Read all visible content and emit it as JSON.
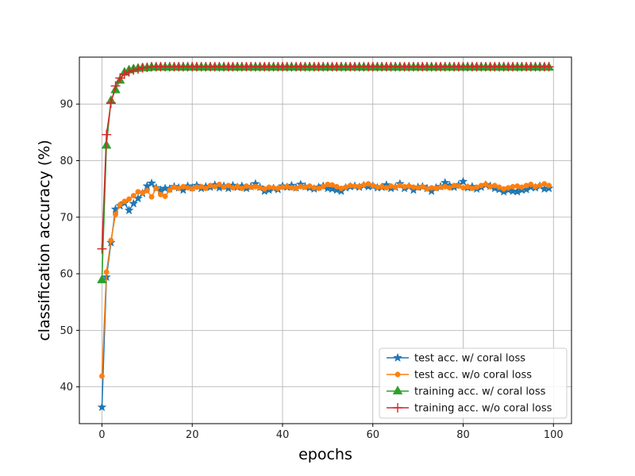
{
  "chart_data": {
    "type": "line",
    "title": "",
    "xlabel": "epochs",
    "ylabel": "classification accuracy (%)",
    "xlim": [
      -5,
      104
    ],
    "ylim": [
      33.5,
      98.3
    ],
    "xticks": [
      0,
      20,
      40,
      60,
      80,
      100
    ],
    "yticks": [
      40,
      50,
      60,
      70,
      80,
      90
    ],
    "grid": true,
    "legend_position": "lower-right",
    "series": [
      {
        "name": "test acc. w/ coral loss",
        "color": "#1f77b4",
        "marker": "star",
        "x": [
          0,
          1,
          2,
          3,
          4,
          5,
          6,
          7,
          8,
          9,
          10,
          11,
          12,
          13,
          14,
          15,
          16,
          17,
          18,
          19,
          20,
          21,
          22,
          23,
          24,
          25,
          26,
          27,
          28,
          29,
          30,
          31,
          32,
          33,
          34,
          35,
          36,
          37,
          38,
          39,
          40,
          41,
          42,
          43,
          44,
          45,
          46,
          47,
          48,
          49,
          50,
          51,
          52,
          53,
          54,
          55,
          56,
          57,
          58,
          59,
          60,
          61,
          62,
          63,
          64,
          65,
          66,
          67,
          68,
          69,
          70,
          71,
          72,
          73,
          74,
          75,
          76,
          77,
          78,
          79,
          80,
          81,
          82,
          83,
          84,
          85,
          86,
          87,
          88,
          89,
          90,
          91,
          92,
          93,
          94,
          95,
          96,
          97,
          98,
          99
        ],
        "y": [
          36.4,
          59.4,
          65.5,
          71.4,
          72.0,
          72.5,
          71.2,
          72.4,
          73.3,
          74.2,
          75.5,
          76.0,
          75.2,
          74.8,
          75.1,
          75.0,
          75.4,
          75.2,
          74.8,
          75.5,
          75.2,
          75.6,
          75.1,
          75.4,
          75.3,
          75.7,
          75.2,
          75.5,
          75.1,
          75.6,
          75.3,
          75.5,
          75.1,
          75.4,
          75.9,
          75.3,
          74.6,
          74.8,
          75.1,
          74.9,
          75.5,
          75.3,
          75.6,
          75.2,
          75.8,
          75.4,
          75.2,
          75.0,
          75.3,
          75.5,
          75.1,
          75.0,
          74.8,
          74.6,
          75.2,
          75.4,
          75.5,
          75.3,
          75.6,
          75.4,
          75.5,
          75.2,
          75.3,
          75.7,
          75.1,
          75.3,
          75.9,
          75.1,
          75.4,
          74.8,
          75.3,
          75.4,
          75.1,
          74.6,
          75.2,
          75.4,
          76.1,
          75.6,
          75.3,
          75.7,
          76.3,
          75.2,
          75.4,
          75.0,
          75.3,
          75.7,
          75.5,
          75.1,
          74.9,
          74.5,
          74.8,
          74.6,
          74.5,
          74.8,
          74.9,
          75.3,
          75.2,
          75.5,
          75.0,
          75.1
        ]
      },
      {
        "name": "test acc. w/o coral loss",
        "color": "#ff7f0e",
        "marker": "circle",
        "x": [
          0,
          1,
          2,
          3,
          4,
          5,
          6,
          7,
          8,
          9,
          10,
          11,
          12,
          13,
          14,
          15,
          16,
          17,
          18,
          19,
          20,
          21,
          22,
          23,
          24,
          25,
          26,
          27,
          28,
          29,
          30,
          31,
          32,
          33,
          34,
          35,
          36,
          37,
          38,
          39,
          40,
          41,
          42,
          43,
          44,
          45,
          46,
          47,
          48,
          49,
          50,
          51,
          52,
          53,
          54,
          55,
          56,
          57,
          58,
          59,
          60,
          61,
          62,
          63,
          64,
          65,
          66,
          67,
          68,
          69,
          70,
          71,
          72,
          73,
          74,
          75,
          76,
          77,
          78,
          79,
          80,
          81,
          82,
          83,
          84,
          85,
          86,
          87,
          88,
          89,
          90,
          91,
          92,
          93,
          94,
          95,
          96,
          97,
          98,
          99
        ],
        "y": [
          41.9,
          60.3,
          65.9,
          70.5,
          72.2,
          72.8,
          73.2,
          73.8,
          74.5,
          74.3,
          74.7,
          73.6,
          75.1,
          74.0,
          73.7,
          74.8,
          75.3,
          75.1,
          75.4,
          75.2,
          75.0,
          75.3,
          75.4,
          75.1,
          75.6,
          75.4,
          75.8,
          75.3,
          75.6,
          75.2,
          75.4,
          75.1,
          75.5,
          75.3,
          75.4,
          75.2,
          75.0,
          75.3,
          75.2,
          75.1,
          75.3,
          75.4,
          75.2,
          75.1,
          75.4,
          75.3,
          75.5,
          75.2,
          75.1,
          75.4,
          75.8,
          75.7,
          75.4,
          75.1,
          75.3,
          75.6,
          75.5,
          75.4,
          75.7,
          75.9,
          75.6,
          75.3,
          75.4,
          75.2,
          75.5,
          75.3,
          75.6,
          75.4,
          75.5,
          75.3,
          75.2,
          75.4,
          75.0,
          75.2,
          75.1,
          75.3,
          75.4,
          75.2,
          75.6,
          75.5,
          75.2,
          75.4,
          75.1,
          75.3,
          75.6,
          75.8,
          75.4,
          75.6,
          75.3,
          75.0,
          75.2,
          75.4,
          75.5,
          75.3,
          75.6,
          75.8,
          75.4,
          75.6,
          75.9,
          75.6
        ]
      },
      {
        "name": "training acc. w/ coral loss",
        "color": "#2ca02c",
        "marker": "triangle",
        "x": [
          0,
          1,
          2,
          3,
          4,
          5,
          6,
          7,
          8,
          9,
          10,
          11,
          12,
          13,
          14,
          15,
          16,
          17,
          18,
          19,
          20,
          21,
          22,
          23,
          24,
          25,
          26,
          27,
          28,
          29,
          30,
          31,
          32,
          33,
          34,
          35,
          36,
          37,
          38,
          39,
          40,
          41,
          42,
          43,
          44,
          45,
          46,
          47,
          48,
          49,
          50,
          51,
          52,
          53,
          54,
          55,
          56,
          57,
          58,
          59,
          60,
          61,
          62,
          63,
          64,
          65,
          66,
          67,
          68,
          69,
          70,
          71,
          72,
          73,
          74,
          75,
          76,
          77,
          78,
          79,
          80,
          81,
          82,
          83,
          84,
          85,
          86,
          87,
          88,
          89,
          90,
          91,
          92,
          93,
          94,
          95,
          96,
          97,
          98,
          99
        ],
        "y": [
          58.9,
          82.7,
          90.6,
          92.5,
          94.2,
          95.6,
          96.0,
          96.2,
          96.3,
          96.4,
          96.4,
          96.5,
          96.5,
          96.5,
          96.5,
          96.5,
          96.5,
          96.5,
          96.5,
          96.5,
          96.5,
          96.5,
          96.5,
          96.5,
          96.5,
          96.5,
          96.5,
          96.5,
          96.5,
          96.5,
          96.5,
          96.5,
          96.5,
          96.5,
          96.5,
          96.5,
          96.5,
          96.5,
          96.5,
          96.5,
          96.5,
          96.5,
          96.5,
          96.5,
          96.5,
          96.5,
          96.5,
          96.5,
          96.5,
          96.5,
          96.5,
          96.5,
          96.5,
          96.5,
          96.5,
          96.5,
          96.5,
          96.5,
          96.5,
          96.5,
          96.5,
          96.5,
          96.5,
          96.5,
          96.5,
          96.5,
          96.5,
          96.5,
          96.5,
          96.5,
          96.5,
          96.5,
          96.5,
          96.5,
          96.5,
          96.5,
          96.5,
          96.5,
          96.5,
          96.5,
          96.5,
          96.5,
          96.5,
          96.5,
          96.5,
          96.5,
          96.5,
          96.5,
          96.5,
          96.5,
          96.5,
          96.5,
          96.5,
          96.5,
          96.5,
          96.5,
          96.5,
          96.5,
          96.5,
          96.5
        ]
      },
      {
        "name": "training acc. w/o coral loss",
        "color": "#d62728",
        "marker": "plus",
        "x": [
          0,
          1,
          2,
          3,
          4,
          5,
          6,
          7,
          8,
          9,
          10,
          11,
          12,
          13,
          14,
          15,
          16,
          17,
          18,
          19,
          20,
          21,
          22,
          23,
          24,
          25,
          26,
          27,
          28,
          29,
          30,
          31,
          32,
          33,
          34,
          35,
          36,
          37,
          38,
          39,
          40,
          41,
          42,
          43,
          44,
          45,
          46,
          47,
          48,
          49,
          50,
          51,
          52,
          53,
          54,
          55,
          56,
          57,
          58,
          59,
          60,
          61,
          62,
          63,
          64,
          65,
          66,
          67,
          68,
          69,
          70,
          71,
          72,
          73,
          74,
          75,
          76,
          77,
          78,
          79,
          80,
          81,
          82,
          83,
          84,
          85,
          86,
          87,
          88,
          89,
          90,
          91,
          92,
          93,
          94,
          95,
          96,
          97,
          98,
          99
        ],
        "y": [
          64.4,
          84.6,
          90.2,
          93.2,
          94.6,
          95.3,
          95.7,
          96.0,
          96.2,
          96.4,
          96.5,
          96.6,
          96.6,
          96.6,
          96.6,
          96.6,
          96.6,
          96.6,
          96.6,
          96.6,
          96.6,
          96.6,
          96.6,
          96.6,
          96.6,
          96.6,
          96.6,
          96.6,
          96.6,
          96.6,
          96.6,
          96.6,
          96.6,
          96.6,
          96.6,
          96.6,
          96.6,
          96.6,
          96.6,
          96.6,
          96.6,
          96.6,
          96.6,
          96.6,
          96.6,
          96.6,
          96.6,
          96.6,
          96.6,
          96.6,
          96.6,
          96.6,
          96.6,
          96.6,
          96.6,
          96.6,
          96.6,
          96.6,
          96.6,
          96.6,
          96.6,
          96.6,
          96.6,
          96.6,
          96.6,
          96.6,
          96.6,
          96.6,
          96.6,
          96.6,
          96.6,
          96.6,
          96.6,
          96.6,
          96.6,
          96.6,
          96.6,
          96.6,
          96.6,
          96.6,
          96.6,
          96.6,
          96.6,
          96.6,
          96.6,
          96.6,
          96.6,
          96.6,
          96.6,
          96.6,
          96.6,
          96.6,
          96.6,
          96.6,
          96.6,
          96.6,
          96.6,
          96.6,
          96.6,
          96.6
        ]
      }
    ]
  }
}
